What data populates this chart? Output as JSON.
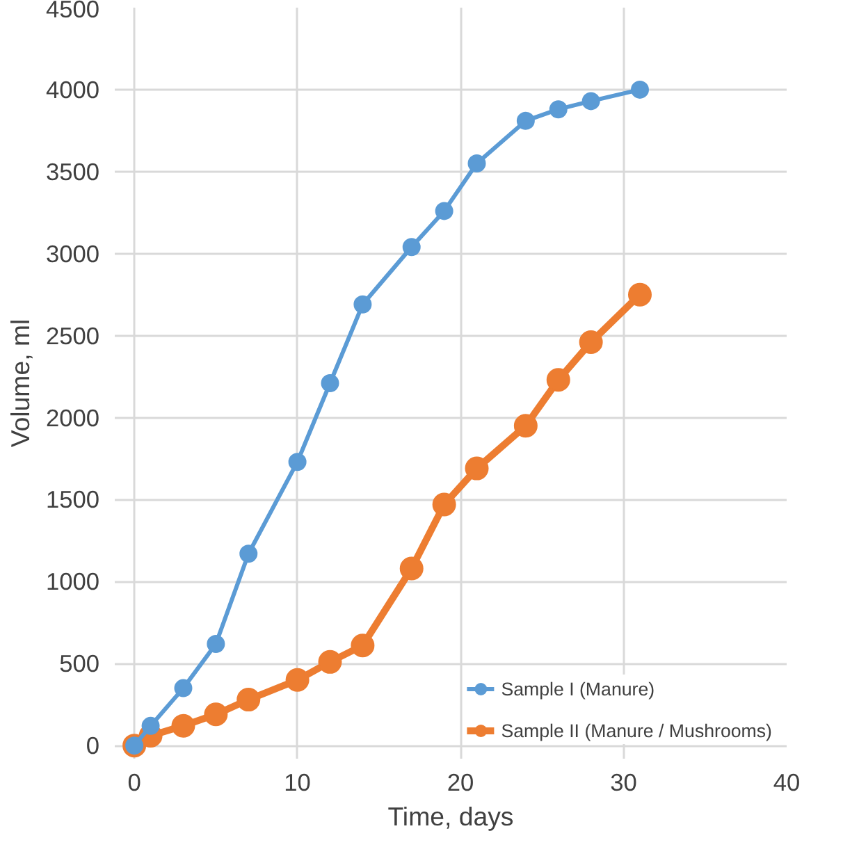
{
  "chart_data": {
    "type": "line",
    "xlabel": "Time, days",
    "ylabel": "Volume, ml",
    "x": [
      0,
      1,
      3,
      5,
      7,
      10,
      12,
      14,
      17,
      19,
      21,
      24,
      26,
      28,
      31
    ],
    "series": [
      {
        "name": "Sample I (Manure)",
        "color": "#5b9bd5",
        "values": [
          0,
          120,
          350,
          620,
          1170,
          1730,
          2210,
          2690,
          3040,
          3260,
          3550,
          3810,
          3880,
          3930,
          4000
        ]
      },
      {
        "name": "Sample II (Manure / Mushrooms)",
        "color": "#ed7d31",
        "values": [
          0,
          60,
          120,
          190,
          280,
          400,
          510,
          610,
          1080,
          1470,
          1690,
          1950,
          2230,
          2460,
          2750
        ]
      }
    ],
    "xlim": [
      0,
      40
    ],
    "xticks": [
      0,
      10,
      20,
      30,
      40
    ],
    "ylim": [
      0,
      4500
    ],
    "yticks": [
      0,
      500,
      1000,
      1500,
      2000,
      2500,
      3000,
      3500,
      4000,
      4500
    ],
    "grid": true,
    "legend": "bottom right",
    "marker": "circle",
    "line_style": "solid"
  }
}
